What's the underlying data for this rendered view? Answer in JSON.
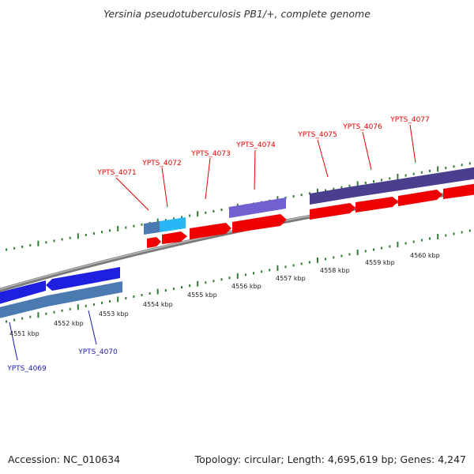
{
  "title": "Yersinia pseudotuberculosis PB1/+, complete genome",
  "footer": {
    "accession": "Accession: NC_010634",
    "summary": "Topology: circular; Length: 4,695,619 bp; Genes: 4,247"
  },
  "colors": {
    "forward_label": "#e00000",
    "reverse_label": "#1a1ab0",
    "backbone": "#7a7a7a",
    "tick": "#2e7d32",
    "cds_forward": "#ee0000",
    "cds_blue": "#1f1fe0",
    "cds_steel": "#4a7ab0",
    "cds_cyan": "#29b6f6",
    "cds_lavender": "#7060d0",
    "cds_indigo": "#4a3f8f"
  },
  "kbp_labels": [
    "4551 kbp",
    "4552 kbp",
    "4553 kbp",
    "4554 kbp",
    "4555 kbp",
    "4556 kbp",
    "4557 kbp",
    "4558 kbp",
    "4559 kbp",
    "4560 kbp"
  ],
  "genes": [
    {
      "name": "YPTS_4069",
      "strand": "reverse"
    },
    {
      "name": "YPTS_4070",
      "strand": "reverse"
    },
    {
      "name": "YPTS_4071",
      "strand": "forward"
    },
    {
      "name": "YPTS_4072",
      "strand": "forward"
    },
    {
      "name": "YPTS_4073",
      "strand": "forward"
    },
    {
      "name": "YPTS_4074",
      "strand": "forward"
    },
    {
      "name": "YPTS_4075",
      "strand": "forward"
    },
    {
      "name": "YPTS_4076",
      "strand": "forward"
    },
    {
      "name": "YPTS_4077",
      "strand": "forward"
    }
  ]
}
